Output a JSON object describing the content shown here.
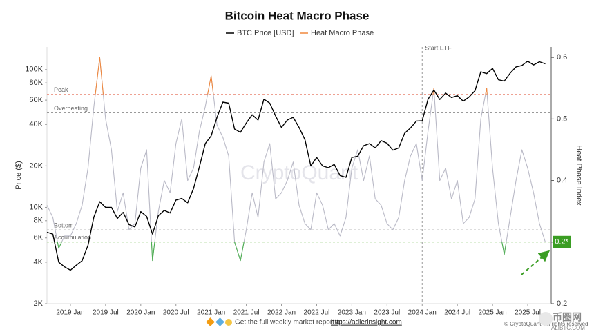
{
  "chart_data": {
    "type": "line",
    "title": "Bitcoin Heat Macro Phase",
    "y_label": "Price ($)",
    "y2_label": "Heat Phase Index",
    "watermark": "CryptoQuant",
    "footer": {
      "text": "Get the full weekly market report at",
      "link": "https://adlerinsight.com"
    },
    "copyright": "© CryptoQuant. All rights reserved",
    "logo": {
      "name": "币圈网",
      "site": "ALIBTC.COM"
    },
    "log_y": true,
    "xlim": [
      "2018-09",
      "2025-11"
    ],
    "xticks": [
      {
        "value": "2019-01",
        "label": "2019 Jan"
      },
      {
        "value": "2019-07",
        "label": "2019 Jul"
      },
      {
        "value": "2020-01",
        "label": "2020 Jan"
      },
      {
        "value": "2020-07",
        "label": "2020 Jul"
      },
      {
        "value": "2021-01",
        "label": "2021 Jan"
      },
      {
        "value": "2021-07",
        "label": "2021 Jul"
      },
      {
        "value": "2022-01",
        "label": "2022 Jan"
      },
      {
        "value": "2022-07",
        "label": "2022 Jul"
      },
      {
        "value": "2023-01",
        "label": "2023 Jan"
      },
      {
        "value": "2023-07",
        "label": "2023 Jul"
      },
      {
        "value": "2024-01",
        "label": "2024 Jan"
      },
      {
        "value": "2024-07",
        "label": "2024 Jul"
      },
      {
        "value": "2025-01",
        "label": "2025 Jan"
      },
      {
        "value": "2025-07",
        "label": "2025 Jul"
      }
    ],
    "ylim": [
      2000,
      146000
    ],
    "yticks": [
      {
        "value": 2000,
        "label": "2K"
      },
      {
        "value": 4000,
        "label": "4K"
      },
      {
        "value": 6000,
        "label": "6K"
      },
      {
        "value": 8000,
        "label": "8K"
      },
      {
        "value": 10000,
        "label": "10K"
      },
      {
        "value": 20000,
        "label": "20K"
      },
      {
        "value": 40000,
        "label": "40K"
      },
      {
        "value": 60000,
        "label": "60K"
      },
      {
        "value": 80000,
        "label": "80K"
      },
      {
        "value": 100000,
        "label": "100K"
      }
    ],
    "y2lim": [
      0.2,
      0.617
    ],
    "y2ticks": [
      0.2,
      0.3,
      0.4,
      0.5,
      0.6
    ],
    "levels": [
      {
        "label": "Peak",
        "value": 0.54,
        "color": "#e8826f"
      },
      {
        "label": "Overheating",
        "value": 0.51,
        "color": "#999999"
      },
      {
        "label": "Bottom",
        "value": 0.32,
        "color": "#bbbbbb"
      },
      {
        "label": "Accumulation",
        "value": 0.3,
        "color": "#7fbf5a"
      }
    ],
    "event": {
      "label": "Start ETF",
      "x": "2024-01"
    },
    "annotation": {
      "text": "0.2*",
      "color": "#3a9d23"
    },
    "x": [
      "2018-09",
      "2018-10",
      "2018-11",
      "2018-12",
      "2019-01",
      "2019-02",
      "2019-03",
      "2019-04",
      "2019-05",
      "2019-06",
      "2019-07",
      "2019-08",
      "2019-09",
      "2019-10",
      "2019-11",
      "2019-12",
      "2020-01",
      "2020-02",
      "2020-03",
      "2020-04",
      "2020-05",
      "2020-06",
      "2020-07",
      "2020-08",
      "2020-09",
      "2020-10",
      "2020-11",
      "2020-12",
      "2021-01",
      "2021-02",
      "2021-03",
      "2021-04",
      "2021-05",
      "2021-06",
      "2021-07",
      "2021-08",
      "2021-09",
      "2021-10",
      "2021-11",
      "2021-12",
      "2022-01",
      "2022-02",
      "2022-03",
      "2022-04",
      "2022-05",
      "2022-06",
      "2022-07",
      "2022-08",
      "2022-09",
      "2022-10",
      "2022-11",
      "2022-12",
      "2023-01",
      "2023-02",
      "2023-03",
      "2023-04",
      "2023-05",
      "2023-06",
      "2023-07",
      "2023-08",
      "2023-09",
      "2023-10",
      "2023-11",
      "2023-12",
      "2024-01",
      "2024-02",
      "2024-03",
      "2024-04",
      "2024-05",
      "2024-06",
      "2024-07",
      "2024-08",
      "2024-09",
      "2024-10",
      "2024-11",
      "2024-12",
      "2025-01",
      "2025-02",
      "2025-03",
      "2025-04",
      "2025-05",
      "2025-06",
      "2025-07",
      "2025-08",
      "2025-09",
      "2025-10"
    ],
    "series": [
      {
        "name": "BTC Price [USD]",
        "color": "#000000",
        "axis": "y",
        "values": [
          6600,
          6400,
          4000,
          3700,
          3500,
          3800,
          4100,
          5300,
          8500,
          11000,
          10000,
          10000,
          8300,
          9200,
          7500,
          7200,
          9300,
          8600,
          6400,
          8700,
          9500,
          9100,
          11300,
          11600,
          10800,
          13700,
          19700,
          29000,
          33000,
          45000,
          58000,
          57000,
          37000,
          35000,
          41000,
          47000,
          43000,
          61000,
          57000,
          46000,
          38000,
          43000,
          45000,
          38000,
          31000,
          20000,
          23000,
          20000,
          19400,
          20500,
          17000,
          16500,
          23000,
          23500,
          28000,
          29000,
          27000,
          30500,
          29200,
          26000,
          27000,
          34500,
          37700,
          42300,
          42500,
          61000,
          71000,
          60600,
          67500,
          62700,
          64600,
          59000,
          63300,
          70200,
          96400,
          93400,
          102000,
          84300,
          82500,
          94200,
          104600,
          107000,
          115000,
          108000,
          114000,
          110000
        ]
      },
      {
        "name": "Heat Macro Phase",
        "color": "#f0883e",
        "base_color": "#b9b9c6",
        "low_color": "#4caf50",
        "axis": "y2",
        "values": [
          0.36,
          0.34,
          0.29,
          0.31,
          0.31,
          0.33,
          0.36,
          0.42,
          0.52,
          0.6,
          0.5,
          0.45,
          0.35,
          0.38,
          0.32,
          0.33,
          0.42,
          0.45,
          0.27,
          0.35,
          0.4,
          0.38,
          0.46,
          0.5,
          0.4,
          0.42,
          0.48,
          0.52,
          0.57,
          0.49,
          0.47,
          0.44,
          0.3,
          0.27,
          0.32,
          0.38,
          0.34,
          0.43,
          0.46,
          0.37,
          0.38,
          0.4,
          0.43,
          0.36,
          0.33,
          0.32,
          0.38,
          0.36,
          0.32,
          0.33,
          0.31,
          0.34,
          0.42,
          0.45,
          0.4,
          0.44,
          0.37,
          0.36,
          0.33,
          0.32,
          0.34,
          0.4,
          0.44,
          0.46,
          0.4,
          0.48,
          0.55,
          0.4,
          0.42,
          0.37,
          0.4,
          0.33,
          0.34,
          0.37,
          0.5,
          0.55,
          0.42,
          0.33,
          0.28,
          0.34,
          0.4,
          0.45,
          0.42,
          0.38,
          0.33,
          0.3
        ]
      }
    ]
  }
}
